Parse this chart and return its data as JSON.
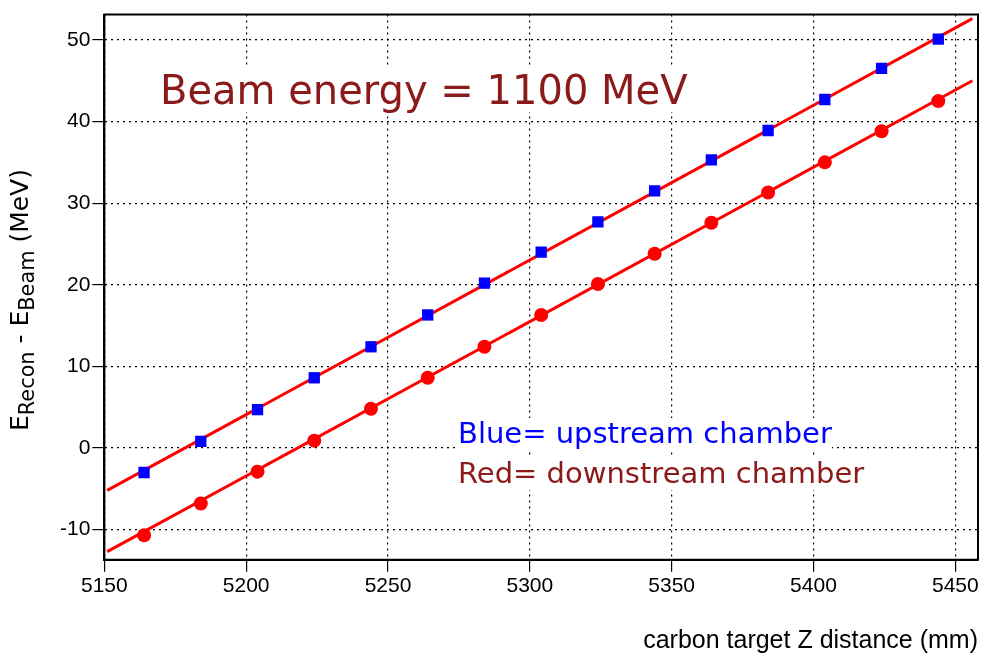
{
  "chart_data": {
    "type": "scatter",
    "xlabel": "carbon target Z distance (mm)",
    "ylabel": "E$_{Recon}$ - E$_{Beam}$ (MeV)",
    "annotations": [
      "Beam energy = 1100 MeV",
      "Blue= upstream chamber",
      "Red= downstream chamber"
    ],
    "xlim": [
      5150,
      5458
    ],
    "xticks": [
      5150,
      5200,
      5250,
      5300,
      5350,
      5400,
      5450
    ],
    "ylim": [
      -13.7,
      53.1
    ],
    "yticks": [
      -10,
      0,
      10,
      20,
      30,
      40,
      50
    ],
    "grid": true,
    "legend": false,
    "series": [
      {
        "type": "scatter",
        "marker": "square",
        "color": "#0000ff",
        "x": [
          5164,
          5184,
          5204,
          5224,
          5244,
          5264,
          5284,
          5304,
          5324,
          5344,
          5364,
          5384,
          5404,
          5424,
          5444
        ],
        "values": [
          -3,
          0.8,
          4.7,
          8.6,
          12.4,
          16.3,
          20.2,
          24,
          27.7,
          31.5,
          35.3,
          38.9,
          42.7,
          46.5,
          50.1
        ]
      },
      {
        "type": "scatter",
        "marker": "circle",
        "color": "#ff0000",
        "x": [
          5164,
          5184,
          5204,
          5224,
          5244,
          5264,
          5284,
          5304,
          5324,
          5344,
          5364,
          5384,
          5404,
          5424,
          5444
        ],
        "values": [
          -10.7,
          -6.8,
          -2.9,
          0.9,
          4.8,
          8.6,
          12.4,
          16.3,
          20.1,
          23.8,
          27.6,
          31.3,
          35,
          38.8,
          42.5
        ]
      },
      {
        "type": "line",
        "marker": "none",
        "line_style": "solid",
        "color": "#ff0000",
        "x": [
          5151,
          5456
        ],
        "values": [
          -5.2,
          52.6
        ]
      },
      {
        "type": "line",
        "marker": "none",
        "line_style": "solid",
        "color": "#ff0000",
        "x": [
          5151,
          5456
        ],
        "values": [
          -12.7,
          45
        ]
      }
    ]
  }
}
